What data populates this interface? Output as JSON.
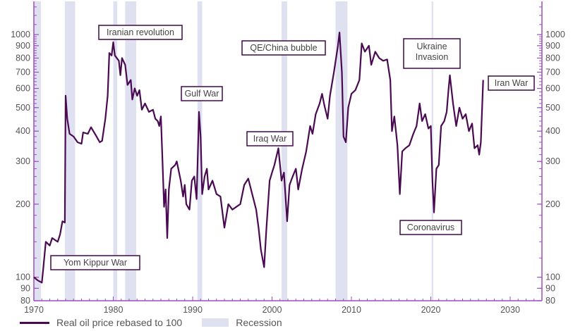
{
  "chart_data": {
    "type": "line",
    "title": "",
    "xlabel": "",
    "ylabel": "",
    "y_scale": "log",
    "xlim": [
      1970,
      2034
    ],
    "ylim": [
      80,
      1370
    ],
    "x_ticks": [
      1970,
      1980,
      1990,
      2000,
      2010,
      2020,
      2030
    ],
    "y_ticks": [
      80,
      90,
      100,
      200,
      300,
      400,
      500,
      600,
      700,
      800,
      900,
      1000
    ],
    "y_axis_sides": [
      "left",
      "right"
    ],
    "grid": false,
    "legend_placement": "bottom-left",
    "colors": {
      "line": "#4a0a52",
      "recession": "#dfe1f1",
      "axis": "#9b4fc0"
    },
    "series": [
      {
        "name": "Real oil price rebased to 100",
        "points": [
          [
            1970,
            100
          ],
          [
            1970.5,
            97
          ],
          [
            1971,
            95
          ],
          [
            1971.2,
            110
          ],
          [
            1971.5,
            140
          ],
          [
            1972,
            135
          ],
          [
            1972.3,
            145
          ],
          [
            1973,
            140
          ],
          [
            1973.3,
            150
          ],
          [
            1973.6,
            170
          ],
          [
            1973.9,
            168
          ],
          [
            1974.0,
            560
          ],
          [
            1974.2,
            450
          ],
          [
            1974.5,
            390
          ],
          [
            1975,
            380
          ],
          [
            1975.5,
            360
          ],
          [
            1976,
            355
          ],
          [
            1976.2,
            395
          ],
          [
            1976.8,
            390
          ],
          [
            1977.2,
            415
          ],
          [
            1977.8,
            385
          ],
          [
            1978.3,
            360
          ],
          [
            1978.6,
            365
          ],
          [
            1979,
            450
          ],
          [
            1979.3,
            560
          ],
          [
            1979.5,
            840
          ],
          [
            1979.8,
            820
          ],
          [
            1980,
            930
          ],
          [
            1980.2,
            820
          ],
          [
            1980.7,
            780
          ],
          [
            1980.9,
            680
          ],
          [
            1981.1,
            800
          ],
          [
            1981.5,
            750
          ],
          [
            1981.8,
            620
          ],
          [
            1982.2,
            650
          ],
          [
            1982.4,
            540
          ],
          [
            1982.7,
            600
          ],
          [
            1983,
            560
          ],
          [
            1983.3,
            590
          ],
          [
            1983.6,
            490
          ],
          [
            1984,
            520
          ],
          [
            1984.5,
            480
          ],
          [
            1985,
            490
          ],
          [
            1985.3,
            450
          ],
          [
            1985.6,
            440
          ],
          [
            1985.8,
            420
          ],
          [
            1986,
            460
          ],
          [
            1986.2,
            300
          ],
          [
            1986.4,
            195
          ],
          [
            1986.6,
            230
          ],
          [
            1986.8,
            145
          ],
          [
            1987,
            230
          ],
          [
            1987.3,
            280
          ],
          [
            1987.8,
            290
          ],
          [
            1988,
            300
          ],
          [
            1988.5,
            250
          ],
          [
            1988.8,
            215
          ],
          [
            1989,
            240
          ],
          [
            1989.2,
            200
          ],
          [
            1989.6,
            190
          ],
          [
            1989.9,
            250
          ],
          [
            1990.2,
            260
          ],
          [
            1990.5,
            210
          ],
          [
            1990.8,
            480
          ],
          [
            1991.0,
            380
          ],
          [
            1991.2,
            220
          ],
          [
            1991.5,
            260
          ],
          [
            1991.8,
            280
          ],
          [
            1992,
            230
          ],
          [
            1992.5,
            250
          ],
          [
            1993,
            220
          ],
          [
            1993.5,
            215
          ],
          [
            1994,
            160
          ],
          [
            1994.5,
            200
          ],
          [
            1995,
            190
          ],
          [
            1995.5,
            195
          ],
          [
            1996,
            200
          ],
          [
            1996.5,
            240
          ],
          [
            1997,
            255
          ],
          [
            1997.5,
            220
          ],
          [
            1998,
            190
          ],
          [
            1998.3,
            160
          ],
          [
            1998.6,
            130
          ],
          [
            1999,
            110
          ],
          [
            1999.3,
            160
          ],
          [
            1999.7,
            250
          ],
          [
            2000,
            270
          ],
          [
            2000.3,
            290
          ],
          [
            2000.8,
            340
          ],
          [
            2001.2,
            250
          ],
          [
            2001.5,
            270
          ],
          [
            2001.9,
            170
          ],
          [
            2002.2,
            240
          ],
          [
            2002.6,
            260
          ],
          [
            2003,
            280
          ],
          [
            2003.3,
            230
          ],
          [
            2003.8,
            280
          ],
          [
            2004.3,
            330
          ],
          [
            2004.8,
            420
          ],
          [
            2005.1,
            390
          ],
          [
            2005.5,
            470
          ],
          [
            2006,
            520
          ],
          [
            2006.3,
            570
          ],
          [
            2006.6,
            510
          ],
          [
            2007,
            450
          ],
          [
            2007.3,
            560
          ],
          [
            2007.8,
            700
          ],
          [
            2008.3,
            900
          ],
          [
            2008.5,
            1020
          ],
          [
            2008.8,
            700
          ],
          [
            2009.0,
            380
          ],
          [
            2009.3,
            360
          ],
          [
            2009.6,
            500
          ],
          [
            2010,
            570
          ],
          [
            2010.5,
            590
          ],
          [
            2011,
            650
          ],
          [
            2011.3,
            920
          ],
          [
            2011.7,
            850
          ],
          [
            2012.2,
            900
          ],
          [
            2012.5,
            750
          ],
          [
            2013,
            850
          ],
          [
            2013.5,
            800
          ],
          [
            2014,
            780
          ],
          [
            2014.5,
            790
          ],
          [
            2014.9,
            650
          ],
          [
            2015.1,
            400
          ],
          [
            2015.4,
            460
          ],
          [
            2015.8,
            350
          ],
          [
            2016.1,
            220
          ],
          [
            2016.4,
            330
          ],
          [
            2016.8,
            340
          ],
          [
            2017.3,
            350
          ],
          [
            2017.8,
            390
          ],
          [
            2018.2,
            420
          ],
          [
            2018.6,
            520
          ],
          [
            2018.9,
            440
          ],
          [
            2019.3,
            470
          ],
          [
            2019.7,
            410
          ],
          [
            2020,
            420
          ],
          [
            2020.2,
            250
          ],
          [
            2020.4,
            185
          ],
          [
            2020.7,
            280
          ],
          [
            2021,
            290
          ],
          [
            2021.3,
            420
          ],
          [
            2021.7,
            440
          ],
          [
            2022,
            480
          ],
          [
            2022.2,
            580
          ],
          [
            2022.4,
            680
          ],
          [
            2022.8,
            520
          ],
          [
            2023.2,
            420
          ],
          [
            2023.6,
            500
          ],
          [
            2024,
            450
          ],
          [
            2024.4,
            470
          ],
          [
            2024.8,
            400
          ],
          [
            2025.2,
            430
          ],
          [
            2025.5,
            340
          ],
          [
            2025.9,
            350
          ],
          [
            2026.1,
            320
          ],
          [
            2026.3,
            360
          ],
          [
            2026.6,
            650
          ]
        ]
      }
    ],
    "recessions": [
      [
        1970,
        1970.9
      ],
      [
        1973.9,
        1975.2
      ],
      [
        1980,
        1980.5
      ],
      [
        1981.5,
        1982.9
      ],
      [
        1990.6,
        1991.2
      ],
      [
        2001.2,
        2001.9
      ],
      [
        2008,
        2009.5
      ],
      [
        2020.1,
        2020.3
      ]
    ],
    "recession_label": "Recession",
    "annotations": [
      "Yom Kippur War",
      "Iranian revolution",
      "Gulf War",
      "QE/China bubble",
      "Iraq War",
      "Ukraine Invasion",
      "Coronavirus",
      "Iran War"
    ]
  }
}
